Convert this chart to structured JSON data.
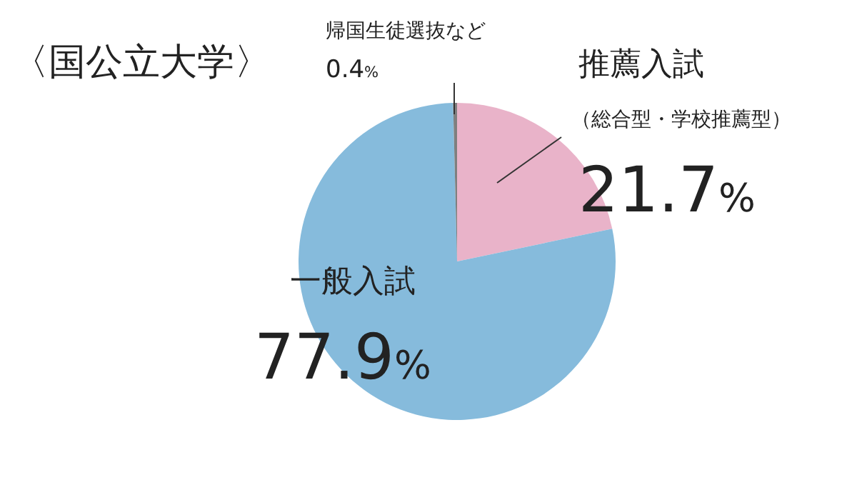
{
  "chart_data": {
    "type": "pie",
    "title": "〈国公立大学〉",
    "categories": [
      "推薦入試",
      "一般入試",
      "帰国生徒選抜など"
    ],
    "values": [
      21.7,
      77.9,
      0.4
    ],
    "colors": [
      "#e9b3c9",
      "#86bbdc",
      "#7f7f7f"
    ],
    "value_labels": [
      "21.7%",
      "77.9%",
      "0.4%"
    ],
    "annotations": [
      "（総合型・学校推薦型）"
    ]
  }
}
